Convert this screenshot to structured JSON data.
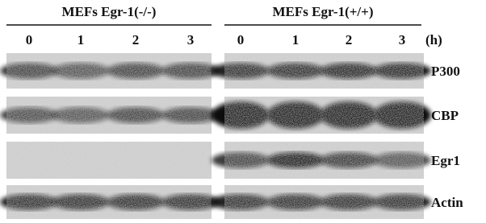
{
  "header": {
    "groups": [
      "MEFs Egr-1(-/-)",
      "MEFs Egr-1(+/+)"
    ],
    "time_labels": [
      [
        "0",
        "1",
        "2",
        "3"
      ],
      [
        "0",
        "1",
        "2",
        "3"
      ]
    ],
    "time_unit": "(h)"
  },
  "rows": [
    "P300",
    "CBP",
    "Egr1",
    "Actin"
  ]
}
